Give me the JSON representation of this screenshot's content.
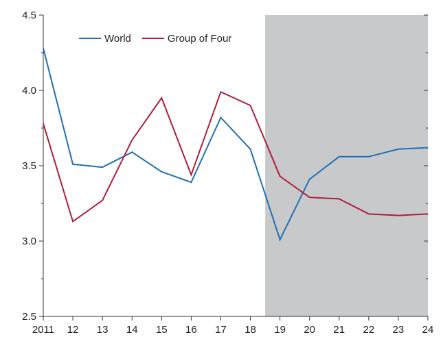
{
  "chart_data": {
    "type": "line",
    "categories": [
      "2011",
      "12",
      "13",
      "14",
      "15",
      "16",
      "17",
      "18",
      "19",
      "20",
      "21",
      "22",
      "23",
      "24"
    ],
    "y_ticks": [
      "4.5",
      "4.0",
      "3.5",
      "3.0",
      "2.5"
    ],
    "ylim": [
      2.5,
      4.5
    ],
    "grid": false,
    "legend_position": "top-left",
    "projection_shading_from": "19",
    "colors": {
      "World": "#1f6fb5",
      "Group of Four": "#b01c3a",
      "shading": "#c8c9cb"
    },
    "series": [
      {
        "name": "World",
        "values": [
          4.28,
          3.51,
          3.49,
          3.59,
          3.46,
          3.39,
          3.82,
          3.61,
          3.01,
          3.41,
          3.56,
          3.56,
          3.61,
          3.62
        ]
      },
      {
        "name": "Group of Four",
        "values": [
          3.78,
          3.13,
          3.27,
          3.67,
          3.95,
          3.44,
          3.99,
          3.9,
          3.43,
          3.29,
          3.28,
          3.18,
          3.17,
          3.18
        ]
      }
    ]
  }
}
